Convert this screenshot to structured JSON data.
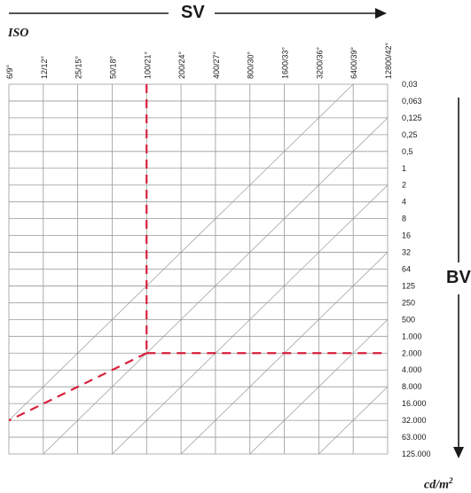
{
  "title": "SV",
  "iso_axis_label": "ISO",
  "bv_axis_label": "BV",
  "unit_label": "cd/m",
  "unit_superscript": "2",
  "iso_ticks": [
    "6/9°",
    "12/12°",
    "25/15°",
    "50/18°",
    "100/21°",
    "200/24°",
    "400/27°",
    "800/30°",
    "1600/33°",
    "3200/36°",
    "6400/39°",
    "12800/42°"
  ],
  "luminance_ticks": [
    "0,03",
    "0,063",
    "0,125",
    "0,25",
    "0,5",
    "1",
    "2",
    "4",
    "8",
    "16",
    "32",
    "64",
    "125",
    "250",
    "500",
    "1.000",
    "2.000",
    "4.000",
    "8.000",
    "16.000",
    "32.000",
    "63.000",
    "125.000"
  ],
  "example": {
    "iso_index": 4,
    "luminance_index": 16
  },
  "colors": {
    "grid": "#999999",
    "text": "#1a1a1a",
    "example_line": "#d8203c"
  }
}
